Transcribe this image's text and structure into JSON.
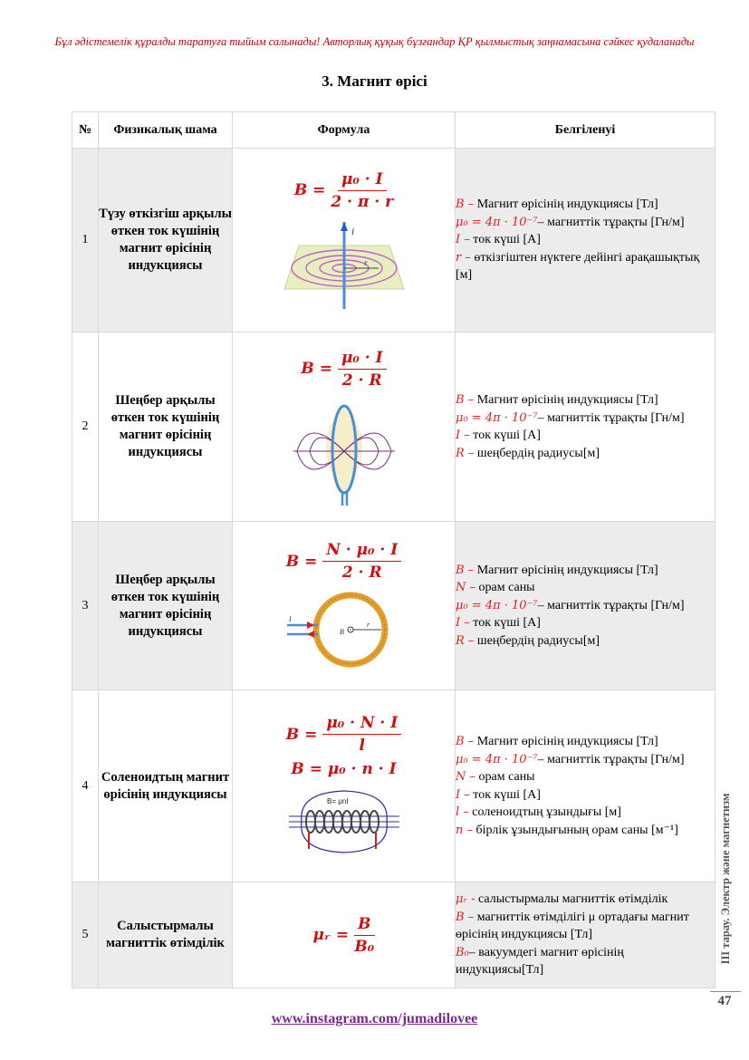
{
  "header": {
    "warning": "Бұл әдістемелік құралды таратуға тыйым салынады! Авторлық құқық бұзғандар ҚР қылмыстық заңнамасына сәйкес қудаланады",
    "title": "3. Магнит өрісі"
  },
  "table": {
    "headers": [
      "№",
      "Физикалық шама",
      "Формула",
      "Белгіленуі"
    ],
    "rows": [
      {
        "num": "1",
        "quantity": "Түзу өткізгіш арқылы өткен ток күшінің магнит өрісінің индукциясы",
        "desc": [
          {
            "sym": "B –",
            "text": " Магнит өрісінің индукциясы [Тл]"
          },
          {
            "sym": "μ₀ = 4π · 10⁻⁷",
            "text": "– магниттік тұрақты [Гн/м]"
          },
          {
            "sym": "I –",
            "text": " ток күші [А]"
          },
          {
            "sym": "r –",
            "text": " өткізгіштен нүктеге дейінгі арақашықтық [м]"
          }
        ]
      },
      {
        "num": "2",
        "quantity": "Шеңбер арқылы өткен ток күшінің магнит өрісінің индукциясы",
        "desc": [
          {
            "sym": "B –",
            "text": " Магнит өрісінің индукциясы [Тл]"
          },
          {
            "sym": "μ₀ = 4π · 10⁻⁷",
            "text": "– магниттік тұрақты [Гн/м]"
          },
          {
            "sym": "I –",
            "text": " ток күші [А]"
          },
          {
            "sym": "R –",
            "text": " шеңбердің радиусы[м]"
          }
        ]
      },
      {
        "num": "3",
        "quantity": "Шеңбер арқылы өткен ток күшінің магнит өрісінің индукциясы",
        "desc": [
          {
            "sym": "B –",
            "text": " Магнит өрісінің индукциясы [Тл]"
          },
          {
            "sym": "N –",
            "text": " орам саны"
          },
          {
            "sym": "μ₀ = 4π · 10⁻⁷",
            "text": "– магниттік тұрақты [Гн/м]"
          },
          {
            "sym": "I –",
            "text": " ток күші [А]"
          },
          {
            "sym": "R –",
            "text": " шеңбердің радиусы[м]"
          }
        ]
      },
      {
        "num": "4",
        "quantity": "Соленоидтың магнит өрісінің индукциясы",
        "desc": [
          {
            "sym": "B –",
            "text": " Магнит өрісінің индукциясы [Тл]"
          },
          {
            "sym": "μ₀ = 4π · 10⁻⁷",
            "text": "– магниттік тұрақты [Гн/м]"
          },
          {
            "sym": "N –",
            "text": " орам саны"
          },
          {
            "sym": "I –",
            "text": " ток күші [А]"
          },
          {
            "sym": "l –",
            "text": " соленоидтың ұзындығы [м]"
          },
          {
            "sym": "n –",
            "text": "  бірлік ұзындығының орам саны [м⁻¹]"
          }
        ]
      },
      {
        "num": "5",
        "quantity": "Салыстырмалы магниттік өтімділік",
        "desc": [
          {
            "sym": "μᵣ -",
            "text": "  салыстырмалы магниттік өтімділік"
          },
          {
            "sym": "B –",
            "text": " магниттік өтімділігі μ ортадағы магнит өрісінің индукциясы [Тл]"
          },
          {
            "sym": "B₀",
            "text": "– вакуумдегі магнит өрісінің индукциясы[Тл]"
          }
        ]
      }
    ],
    "formulas": {
      "f1": {
        "lhs": "B =",
        "num": "μ₀ · I",
        "den": "2 · π · r"
      },
      "f2": {
        "lhs": "B =",
        "num": "μ₀ · I",
        "den": "2 · R"
      },
      "f3": {
        "lhs": "B =",
        "num": "N · μ₀ · I",
        "den": "2 · R"
      },
      "f4a": {
        "lhs": "B =",
        "num": "μ₀ · N · I",
        "den": "l"
      },
      "f4b": "B = μ₀ · n · I",
      "f5": {
        "lhs": "μᵣ =",
        "num": "B",
        "den": "B₀"
      }
    },
    "figure_labels": {
      "fig1_current": "I",
      "fig1_radius": "r",
      "fig3_current": "I",
      "fig3_field": "B",
      "fig3_radius": "r",
      "fig4_formula": "B= μnI"
    }
  },
  "sidebar": {
    "chapter": "ІІІ тарау. Электр және магнетизм",
    "page_number": "47"
  },
  "footer": {
    "link": "www.instagram.com/jumadilovee"
  },
  "colors": {
    "warning": "#c00000",
    "formula": "#d01010",
    "symbol": "#e02020",
    "link": "#7b2a8c",
    "row_shade": "#ececec"
  }
}
